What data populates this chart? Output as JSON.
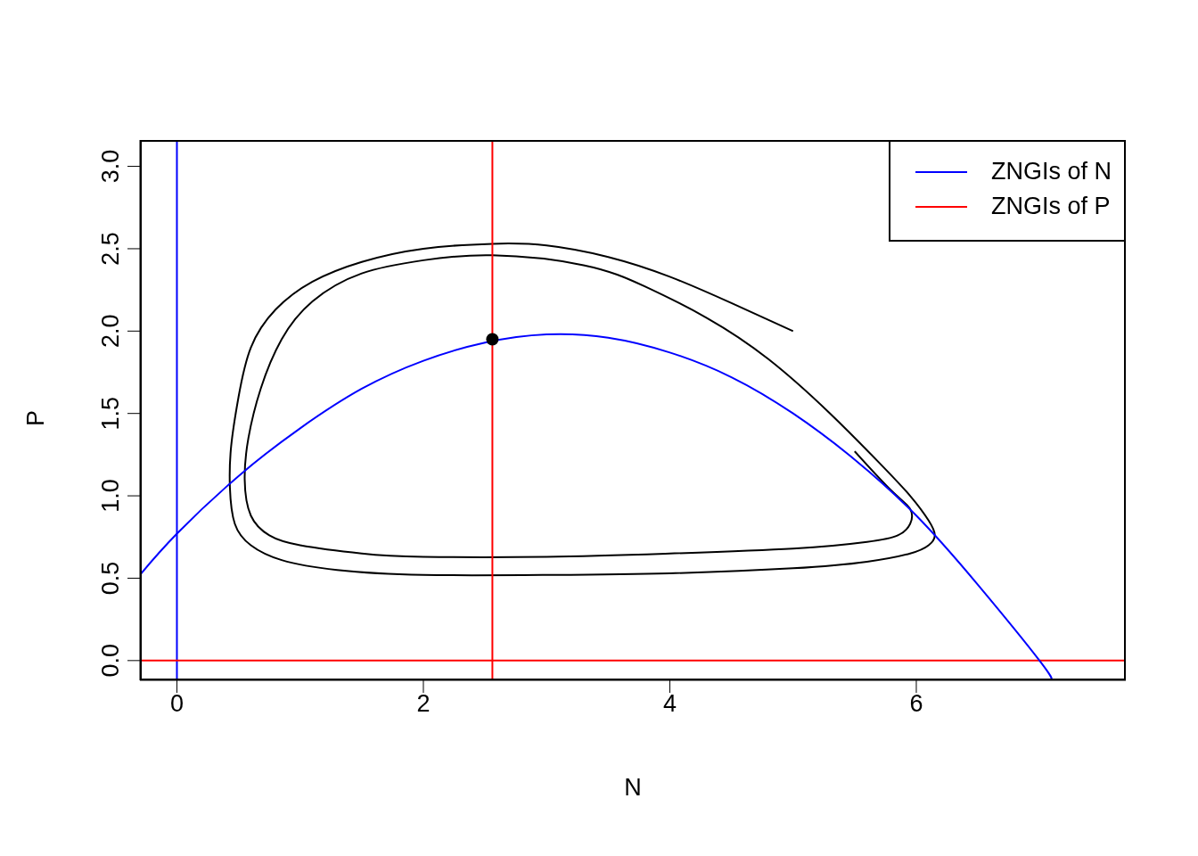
{
  "chart_data": {
    "type": "line",
    "xlabel": "N",
    "ylabel": "P",
    "xlim": [
      -0.3,
      7.7
    ],
    "ylim": [
      -0.12,
      3.16
    ],
    "xticks": [
      0,
      2,
      4,
      6
    ],
    "yticks": [
      {
        "value": 0,
        "label": "0.0"
      },
      {
        "value": 0.5,
        "label": "0.5"
      },
      {
        "value": 1,
        "label": "1.0"
      },
      {
        "value": 1.5,
        "label": "1.5"
      },
      {
        "value": 2,
        "label": "2.0"
      },
      {
        "value": 2.5,
        "label": "2.5"
      },
      {
        "value": 3,
        "label": "3.0"
      }
    ],
    "grid": false,
    "legend": "top right",
    "marker": "none",
    "line_style": "solid",
    "series": [
      {
        "color": "#000000",
        "x": [
          5,
          4.5,
          4,
          3.5,
          3,
          2.56,
          2,
          1.5,
          1.1,
          0.8,
          0.6,
          0.5,
          0.44,
          0.43,
          0.47,
          0.6,
          0.85,
          1.3,
          2,
          3,
          4,
          5,
          5.6,
          5.95,
          6.1,
          6.15,
          6.1,
          5.95,
          5.7,
          5.3,
          4.8,
          4.3,
          3.8,
          3.3,
          2.56,
          2,
          1.5,
          1.1,
          0.85,
          0.68,
          0.58,
          0.55,
          0.6,
          0.75,
          1,
          1.5,
          2,
          3,
          4,
          5,
          5.6,
          5.85,
          5.95,
          5.95,
          5.8,
          5.5
        ],
        "values": [
          2,
          2.17,
          2.33,
          2.45,
          2.52,
          2.53,
          2.5,
          2.42,
          2.3,
          2.13,
          1.9,
          1.6,
          1.3,
          1.05,
          0.83,
          0.7,
          0.61,
          0.55,
          0.52,
          0.52,
          0.53,
          0.56,
          0.6,
          0.65,
          0.7,
          0.76,
          0.85,
          1.0,
          1.2,
          1.5,
          1.83,
          2.08,
          2.27,
          2.4,
          2.46,
          2.43,
          2.35,
          2.18,
          1.95,
          1.65,
          1.35,
          1.1,
          0.88,
          0.76,
          0.7,
          0.65,
          0.63,
          0.63,
          0.65,
          0.68,
          0.72,
          0.76,
          0.83,
          0.92,
          1.03,
          1.27
        ]
      },
      {
        "name": "ZNGIs of N",
        "color": "#0000ff",
        "x": [
          -0.3,
          0,
          0.5,
          1,
          1.5,
          2,
          2.5,
          3,
          3.5,
          4,
          4.5,
          5,
          5.5,
          6,
          6.5,
          7,
          7.1
        ],
        "values": [
          0.52,
          0.77,
          1.12,
          1.41,
          1.65,
          1.82,
          1.93,
          1.98,
          1.96,
          1.87,
          1.72,
          1.5,
          1.22,
          0.88,
          0.46,
          0,
          -0.12
        ]
      },
      {
        "name": "ZNGIs of P",
        "color": "#ff0000",
        "x": [
          2.56,
          2.56
        ],
        "values": [
          -0.12,
          3.16
        ]
      },
      {
        "type": "scatter",
        "marker": "circle",
        "color": "#000000",
        "x": [
          2.56
        ],
        "values": [
          1.95
        ]
      }
    ],
    "ref_lines": [
      {
        "axis": "x",
        "value": 0,
        "color": "#0000ff"
      },
      {
        "axis": "y",
        "value": 0,
        "color": "#ff0000"
      }
    ]
  }
}
